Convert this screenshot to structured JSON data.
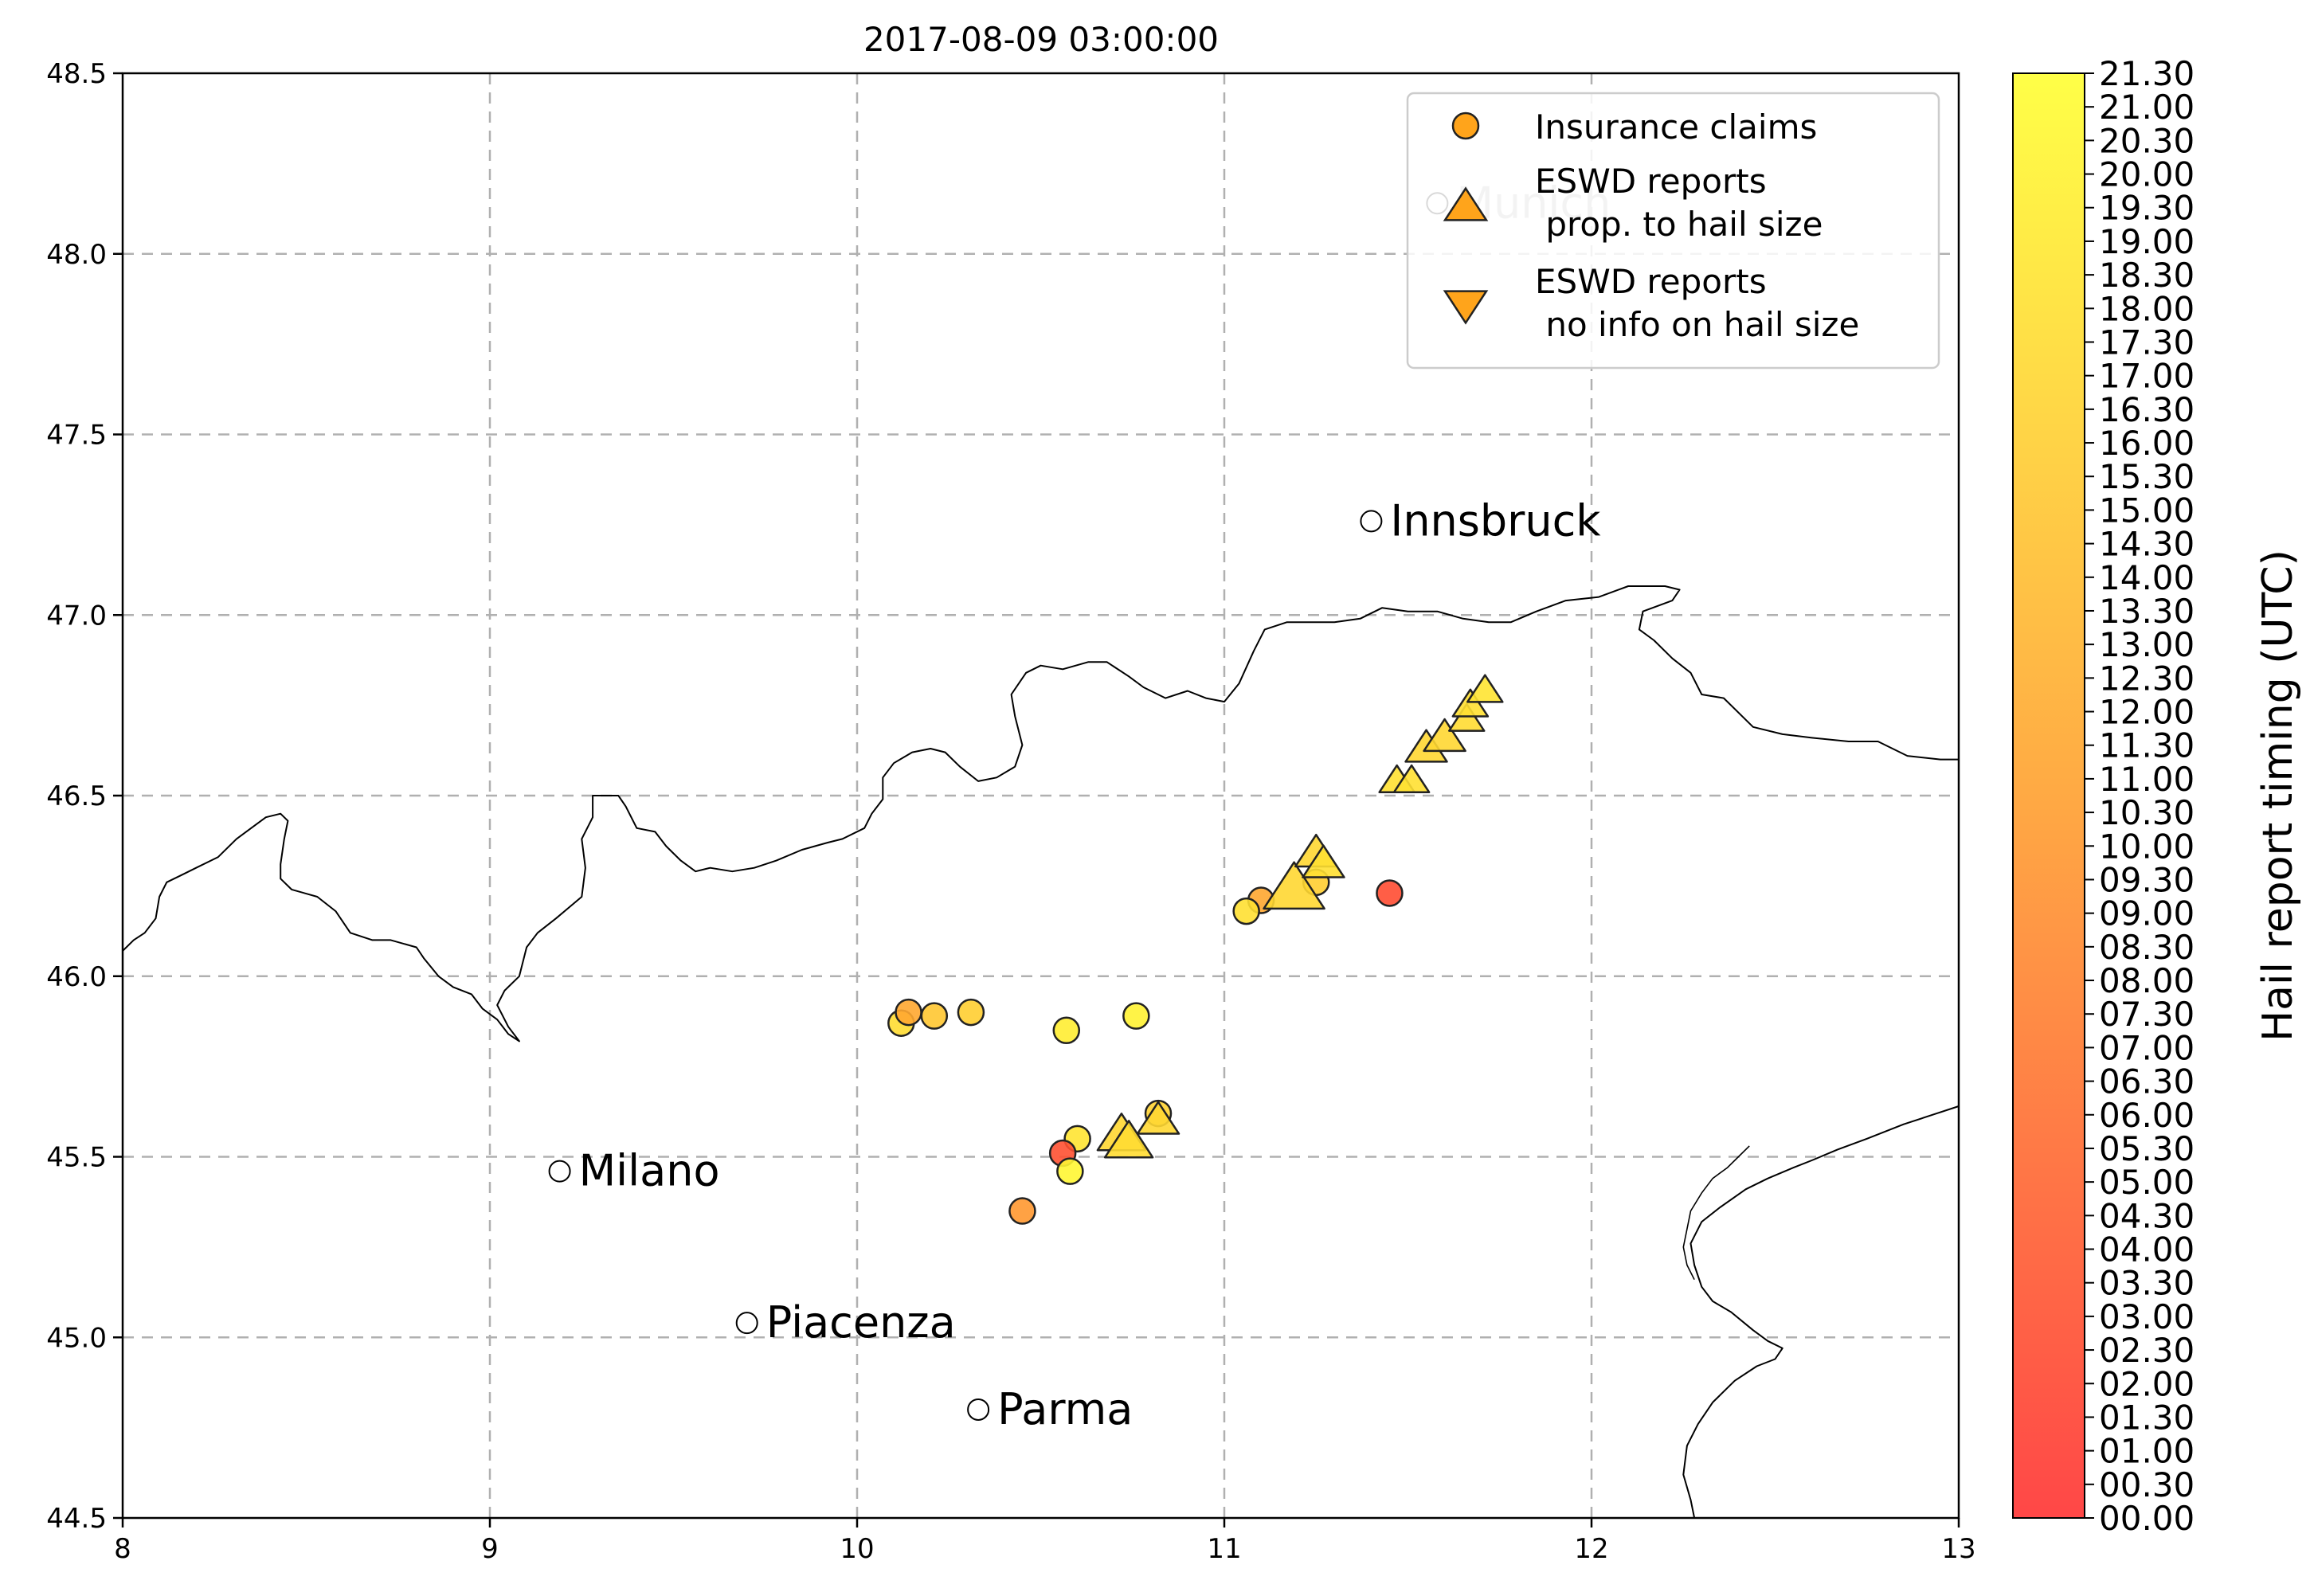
{
  "title": "2017-08-09 03:00:00",
  "map": {
    "lon_range": [
      8,
      13
    ],
    "lat_range": [
      44.5,
      48.5
    ],
    "x_ticks": [
      8,
      9,
      10,
      11,
      12,
      13
    ],
    "y_ticks": [
      44.5,
      45.0,
      45.5,
      46.0,
      46.5,
      47.0,
      47.5,
      48.0,
      48.5
    ],
    "x_tick_labels": [
      "8",
      "9",
      "10",
      "11",
      "12",
      "13"
    ],
    "y_tick_labels": [
      "44.5",
      "45.0",
      "45.5",
      "46.0",
      "46.5",
      "47.0",
      "47.5",
      "48.0",
      "48.5"
    ],
    "grid": true,
    "border_color": "#000000"
  },
  "cities": [
    {
      "name": "Munich",
      "lon": 11.58,
      "lat": 48.14
    },
    {
      "name": "Innsbruck",
      "lon": 11.4,
      "lat": 47.26
    },
    {
      "name": "Milano",
      "lon": 9.19,
      "lat": 45.46
    },
    {
      "name": "Piacenza",
      "lon": 9.7,
      "lat": 45.04
    },
    {
      "name": "Parma",
      "lon": 10.33,
      "lat": 44.8
    }
  ],
  "legend": {
    "placement": "top-right",
    "items": [
      {
        "marker": "circle",
        "label_lines": [
          "Insurance claims"
        ],
        "color": "#ffa41b"
      },
      {
        "marker": "triangle-up",
        "label_lines": [
          "ESWD reports",
          " prop. to hail size"
        ],
        "color": "#ffa41b"
      },
      {
        "marker": "triangle-down",
        "label_lines": [
          "ESWD reports",
          " no info on hail size"
        ],
        "color": "#ffa41b"
      }
    ]
  },
  "colorbar": {
    "label": "Hail report timing (UTC)",
    "min": 0,
    "max": 21.5,
    "color_low": "#ff3333",
    "color_mid": "#ffa030",
    "color_high": "#ffff33",
    "tick_labels": [
      "00.00",
      "00.30",
      "01.00",
      "01.30",
      "02.00",
      "02.30",
      "03.00",
      "03.30",
      "04.00",
      "04.30",
      "05.00",
      "05.30",
      "06.00",
      "06.30",
      "07.00",
      "07.30",
      "08.00",
      "08.30",
      "09.00",
      "09.30",
      "10.00",
      "10.30",
      "11.00",
      "11.30",
      "12.00",
      "12.30",
      "13.00",
      "13.30",
      "14.00",
      "14.30",
      "15.00",
      "15.30",
      "16.00",
      "16.30",
      "17.00",
      "17.30",
      "18.00",
      "18.30",
      "19.00",
      "19.30",
      "20.00",
      "20.30",
      "21.00",
      "21.30"
    ]
  },
  "insurance_claims": [
    {
      "lon": 10.12,
      "lat": 45.87,
      "t": 17.5
    },
    {
      "lon": 10.14,
      "lat": 45.9,
      "t": 11.5
    },
    {
      "lon": 10.21,
      "lat": 45.89,
      "t": 15.0
    },
    {
      "lon": 10.31,
      "lat": 45.9,
      "t": 16.0
    },
    {
      "lon": 10.57,
      "lat": 45.85,
      "t": 19.5
    },
    {
      "lon": 10.76,
      "lat": 45.89,
      "t": 20.0
    },
    {
      "lon": 10.82,
      "lat": 45.62,
      "t": 16.5
    },
    {
      "lon": 10.6,
      "lat": 45.55,
      "t": 18.5
    },
    {
      "lon": 10.56,
      "lat": 45.51,
      "t": 3.0
    },
    {
      "lon": 10.58,
      "lat": 45.46,
      "t": 20.5
    },
    {
      "lon": 10.45,
      "lat": 45.35,
      "t": 10.0
    },
    {
      "lon": 11.1,
      "lat": 46.21,
      "t": 11.5
    },
    {
      "lon": 11.06,
      "lat": 46.18,
      "t": 18.0
    },
    {
      "lon": 11.45,
      "lat": 46.23,
      "t": 2.5
    },
    {
      "lon": 11.25,
      "lat": 46.26,
      "t": 16.0
    }
  ],
  "eswd_sized": [
    {
      "lon": 11.19,
      "lat": 46.24,
      "t": 17.0,
      "size": 3.0
    },
    {
      "lon": 11.25,
      "lat": 46.34,
      "t": 17.0,
      "size": 1.5
    },
    {
      "lon": 11.27,
      "lat": 46.31,
      "t": 18.0,
      "size": 1.5
    },
    {
      "lon": 10.72,
      "lat": 45.56,
      "t": 17.0,
      "size": 2.0
    },
    {
      "lon": 10.74,
      "lat": 45.54,
      "t": 17.5,
      "size": 2.0
    },
    {
      "lon": 10.82,
      "lat": 45.6,
      "t": 17.0,
      "size": 1.5
    },
    {
      "lon": 11.47,
      "lat": 46.54,
      "t": 18.0,
      "size": 1.0
    },
    {
      "lon": 11.51,
      "lat": 46.54,
      "t": 18.0,
      "size": 1.0
    },
    {
      "lon": 11.55,
      "lat": 46.63,
      "t": 17.0,
      "size": 1.5
    },
    {
      "lon": 11.6,
      "lat": 46.66,
      "t": 17.0,
      "size": 1.5
    },
    {
      "lon": 11.66,
      "lat": 46.71,
      "t": 17.5,
      "size": 1.0
    },
    {
      "lon": 11.67,
      "lat": 46.75,
      "t": 18.0,
      "size": 1.0
    },
    {
      "lon": 11.71,
      "lat": 46.79,
      "t": 18.5,
      "size": 1.0
    }
  ]
}
